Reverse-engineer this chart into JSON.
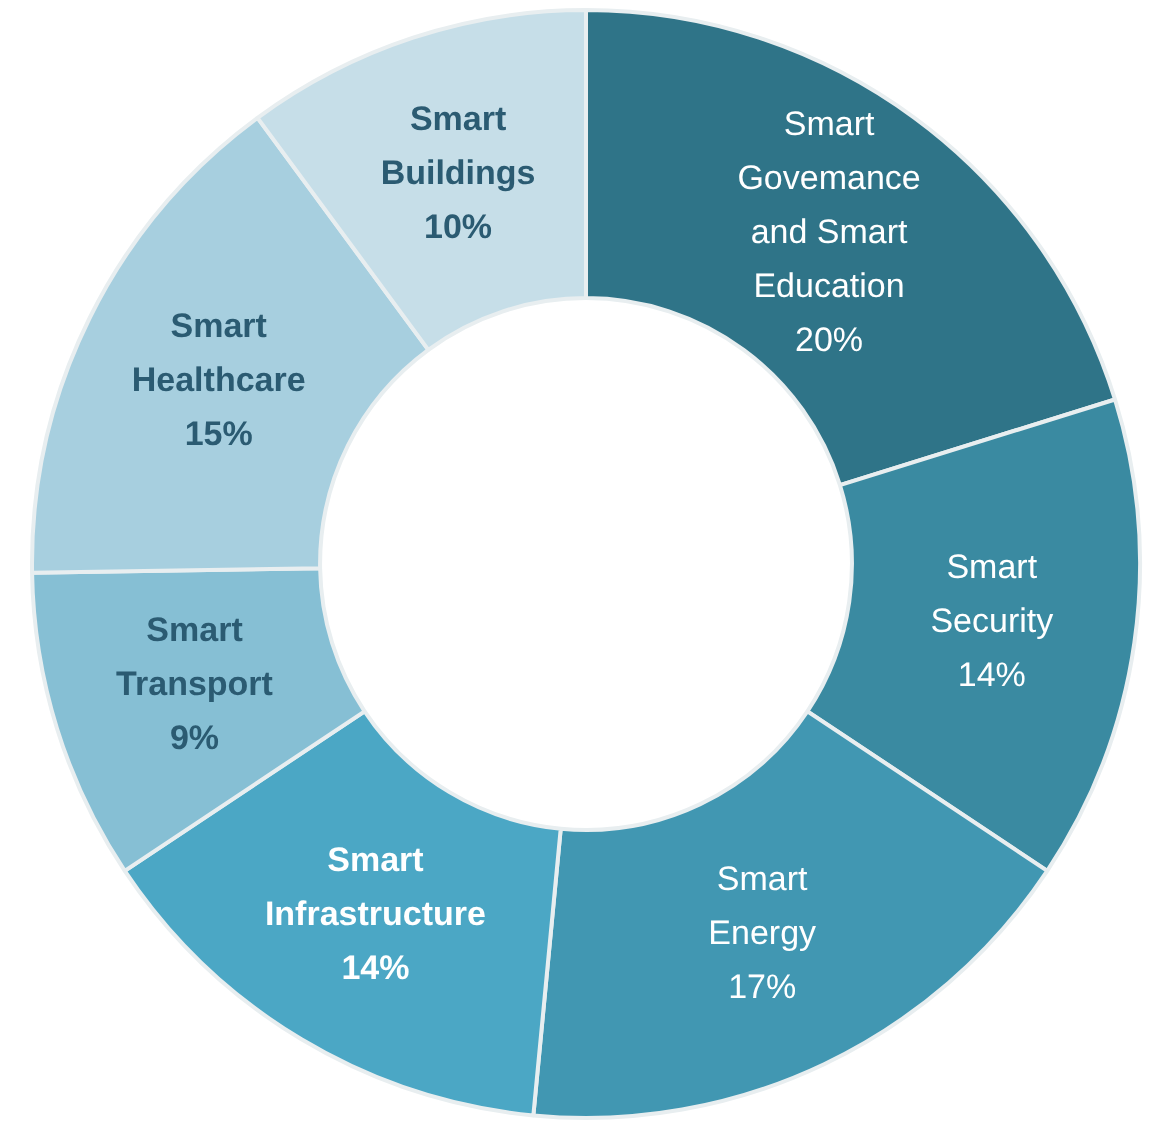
{
  "chart_data": {
    "type": "donut",
    "categories": [
      "Smart Govemance and Smart Education",
      "Smart Security",
      "Smart Energy",
      "Smart Infrastructure",
      "Smart Transport",
      "Smart Healthcare",
      "Smart Buildings"
    ],
    "values": [
      20,
      14,
      17,
      14,
      9,
      15,
      10
    ],
    "colors": [
      "#2f7488",
      "#3a8aa1",
      "#4197b2",
      "#4ba7c5",
      "#86bfd4",
      "#a7cfdf",
      "#c6dee8"
    ],
    "value_labels": [
      "20%",
      "14%",
      "17%",
      "14%",
      "9%",
      "15%",
      "10%"
    ],
    "legend": false
  }
}
